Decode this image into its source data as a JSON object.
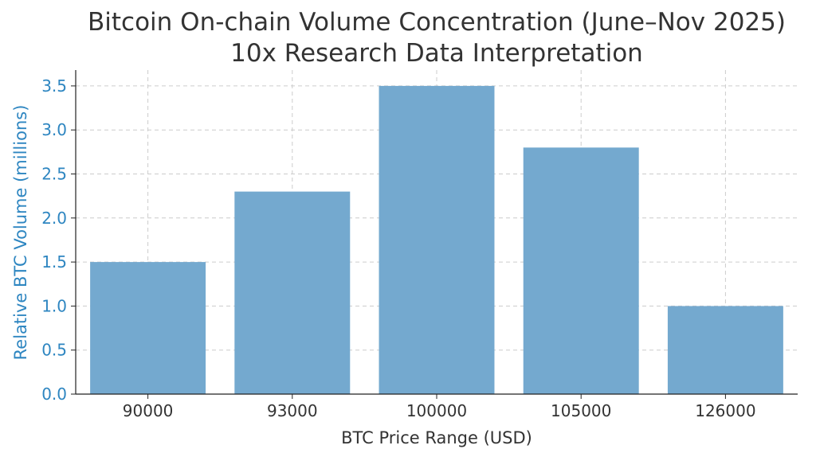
{
  "chart_data": {
    "type": "bar",
    "title": "Bitcoin On-chain Volume Concentration (June–Nov 2025)",
    "subtitle": "10x Research Data Interpretation",
    "xlabel": "BTC Price Range (USD)",
    "ylabel": "Relative BTC Volume (millions)",
    "categories": [
      "90000",
      "93000",
      "100000",
      "105000",
      "126000"
    ],
    "values": [
      1.5,
      2.3,
      3.5,
      2.8,
      1.0
    ],
    "ylim": [
      0,
      3.68
    ],
    "yticks": [
      "0.0",
      "0.5",
      "1.0",
      "1.5",
      "2.0",
      "2.5",
      "3.0",
      "3.5"
    ],
    "grid": true,
    "colors": {
      "bar": "#74a9cf",
      "ylabel": "#2e86c1",
      "yticks": "#2e86c1",
      "xticks": "#333333",
      "grid": "#cccccc",
      "axis": "#222222",
      "text": "#333333"
    }
  }
}
